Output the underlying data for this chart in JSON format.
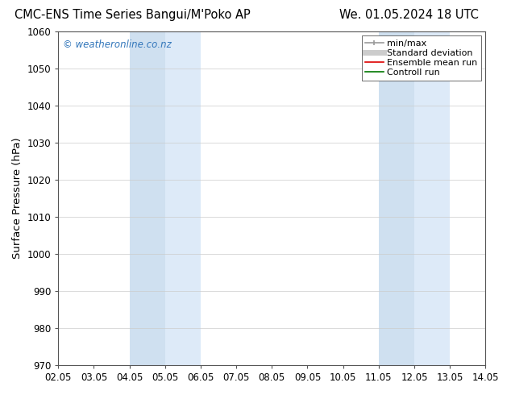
{
  "title_left": "CMC-ENS Time Series Bangui/M'Poko AP",
  "title_right": "We. 01.05.2024 18 UTC",
  "ylabel": "Surface Pressure (hPa)",
  "ylim": [
    970,
    1060
  ],
  "yticks": [
    970,
    980,
    990,
    1000,
    1010,
    1020,
    1030,
    1040,
    1050,
    1060
  ],
  "xtick_labels": [
    "02.05",
    "03.05",
    "04.05",
    "05.05",
    "06.05",
    "07.05",
    "08.05",
    "09.05",
    "10.05",
    "11.05",
    "12.05",
    "13.05",
    "14.05"
  ],
  "xlim": [
    0,
    12
  ],
  "shaded_bands": [
    {
      "x_start": 2,
      "x_end": 3,
      "color": "#cfe0f0"
    },
    {
      "x_start": 3,
      "x_end": 4,
      "color": "#ddeaf8"
    },
    {
      "x_start": 9,
      "x_end": 10,
      "color": "#cfe0f0"
    },
    {
      "x_start": 10,
      "x_end": 11,
      "color": "#ddeaf8"
    }
  ],
  "watermark_text": "© weatheronline.co.nz",
  "watermark_color": "#3377bb",
  "legend_items": [
    {
      "label": "min/max",
      "color": "#999999",
      "lw": 1.2,
      "ls": "-",
      "type": "minmax"
    },
    {
      "label": "Standard deviation",
      "color": "#cccccc",
      "lw": 5,
      "ls": "-",
      "type": "line"
    },
    {
      "label": "Ensemble mean run",
      "color": "#dd0000",
      "lw": 1.2,
      "ls": "-",
      "type": "line"
    },
    {
      "label": "Controll run",
      "color": "#007700",
      "lw": 1.2,
      "ls": "-",
      "type": "line"
    }
  ],
  "grid_color": "#cccccc",
  "spine_color": "#555555",
  "background_color": "#ffffff",
  "title_fontsize": 10.5,
  "tick_fontsize": 8.5,
  "ylabel_fontsize": 9.5,
  "legend_fontsize": 8,
  "watermark_fontsize": 8.5
}
